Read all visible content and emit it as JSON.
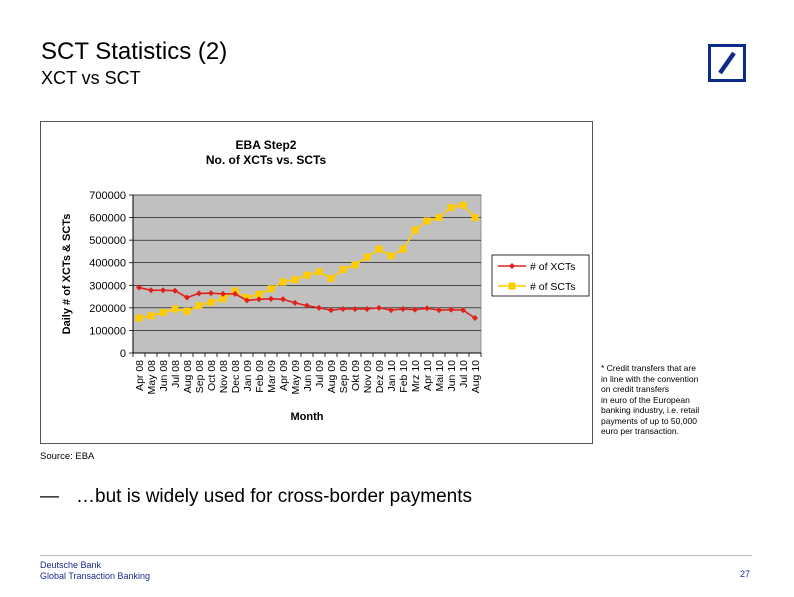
{
  "header": {
    "title": "SCT Statistics (2)",
    "subtitle": "XCT vs SCT"
  },
  "brand": {
    "logo_color": "#0b2a8a"
  },
  "chart_data": {
    "type": "line",
    "title_line1": "EBA Step2",
    "title_line2": "No. of XCTs vs. SCTs",
    "xlabel": "Month",
    "ylabel": "Daily # of XCTs & SCTs",
    "ylim": [
      0,
      700000
    ],
    "yticks": [
      "0",
      "100000",
      "200000",
      "300000",
      "400000",
      "500000",
      "600000",
      "700000"
    ],
    "grid": true,
    "legend_position": "right",
    "plot_background": "#c0c0c0",
    "categories": [
      "Apr 08",
      "May 08",
      "Jun 08",
      "Jul 08",
      "Aug 08",
      "Sep 08",
      "Oct 08",
      "Nov 08",
      "Dec 08",
      "Jan 09",
      "Feb 09",
      "Mar 09",
      "Apr 09",
      "May 09",
      "Jun 09",
      "Jul 09",
      "Aug 09",
      "Sep 09",
      "Okt 09",
      "Nov 09",
      "Dez 09",
      "Jan 10",
      "Feb 10",
      "Mrz 10",
      "Apr 10",
      "Mai 10",
      "Jun 10",
      "Jul 10",
      "Aug 10"
    ],
    "series": [
      {
        "name": "# of XCTs",
        "color": "#e0201b",
        "marker": "diamond",
        "values": [
          290000,
          278000,
          278000,
          276000,
          246000,
          264000,
          265000,
          262000,
          262000,
          233000,
          238000,
          240000,
          238000,
          222000,
          210000,
          200000,
          190000,
          195000,
          195000,
          195000,
          200000,
          190000,
          195000,
          192000,
          198000,
          190000,
          192000,
          190000,
          155000
        ]
      },
      {
        "name": "# of SCTs",
        "color": "#ffcc00",
        "marker": "square",
        "values": [
          155000,
          165000,
          180000,
          195000,
          185000,
          210000,
          225000,
          240000,
          275000,
          245000,
          260000,
          285000,
          315000,
          325000,
          345000,
          360000,
          330000,
          370000,
          390000,
          425000,
          460000,
          430000,
          460000,
          545000,
          585000,
          600000,
          645000,
          655000,
          600000
        ]
      }
    ]
  },
  "note": {
    "lines": [
      "* Credit transfers that are",
      "in line with the convention",
      "on credit transfers",
      "in euro of the European",
      "banking industry, i.e. retail",
      "payments of up to 50,000",
      "euro per transaction."
    ]
  },
  "source": "Source: EBA",
  "bullet": {
    "dash": "—",
    "text": "…but is widely used for cross-border payments"
  },
  "footer": {
    "line1": "Deutsche Bank",
    "line2": "Global Transaction Banking",
    "page_number": "27"
  }
}
